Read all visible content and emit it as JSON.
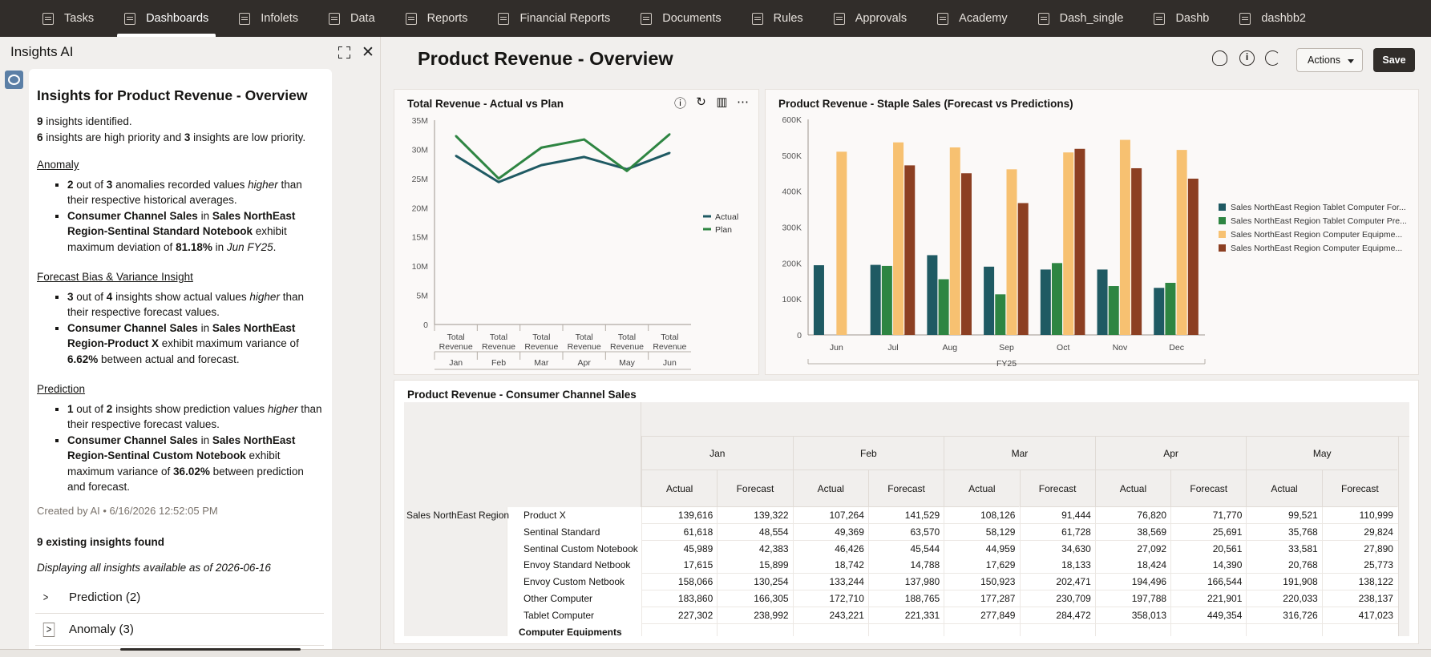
{
  "nav": {
    "items": [
      {
        "label": "Tasks",
        "icon": "clipboard-icon"
      },
      {
        "label": "Dashboards",
        "icon": "dashboard-icon",
        "active": true
      },
      {
        "label": "Infolets",
        "icon": "infolet-icon"
      },
      {
        "label": "Data",
        "icon": "data-grid-icon"
      },
      {
        "label": "Reports",
        "icon": "report-icon"
      },
      {
        "label": "Financial Reports",
        "icon": "financial-report-icon"
      },
      {
        "label": "Documents",
        "icon": "document-icon"
      },
      {
        "label": "Rules",
        "icon": "rules-icon"
      },
      {
        "label": "Approvals",
        "icon": "approvals-icon"
      },
      {
        "label": "Academy",
        "icon": "academy-icon"
      },
      {
        "label": "Dash_single",
        "icon": "dashboard-icon"
      },
      {
        "label": "Dashb",
        "icon": "dashboard-icon"
      },
      {
        "label": "dashbb2",
        "icon": "dashboard-icon"
      }
    ]
  },
  "insights": {
    "panel_title": "Insights AI",
    "heading": "Insights for Product Revenue - Overview",
    "count_line": {
      "n": "9",
      "text": " insights identified."
    },
    "priority_line": {
      "high": "6",
      "mid": " insights are high priority and ",
      "low": "3",
      "end": " insights are low priority."
    },
    "anomaly": {
      "title": "Anomaly",
      "b1": {
        "a": "2",
        "b": " out of ",
        "c": "3",
        "d": " anomalies recorded values ",
        "e": "higher",
        "f": " than their respective historical averages."
      },
      "b2": {
        "a": "Consumer Channel Sales",
        "b": " in ",
        "c": "Sales NorthEast Region-Sentinal Standard Notebook",
        "d": " exhibit maximum deviation of ",
        "e": "81.18%",
        "f": " in ",
        "g": "Jun FY25",
        "h": "."
      }
    },
    "forecast": {
      "title": "Forecast Bias & Variance Insight",
      "b1": {
        "a": "3",
        "b": " out of ",
        "c": "4",
        "d": " insights show actual values ",
        "e": "higher",
        "f": " than their respective forecast values."
      },
      "b2": {
        "a": "Consumer Channel Sales",
        "b": " in ",
        "c": "Sales NorthEast Region-Product X",
        "d": " exhibit maximum variance of ",
        "e": "6.62%",
        "f": " between actual and forecast."
      }
    },
    "prediction": {
      "title": "Prediction",
      "b1": {
        "a": "1",
        "b": " out of ",
        "c": "2",
        "d": " insights show prediction values ",
        "e": "higher",
        "f": " than their respective forecast values."
      },
      "b2": {
        "a": "Consumer Channel Sales",
        "b": " in ",
        "c": "Sales NorthEast Region-Sentinal Custom Notebook",
        "d": " exhibit maximum variance of ",
        "e": "36.02%",
        "f": " between prediction and forecast."
      }
    },
    "created": "Created by AI • 6/16/2026 12:52:05 PM",
    "existing": "9 existing insights found",
    "displaying": "Displaying all insights available as of 2026-06-16",
    "accordions": [
      {
        "label": "Prediction (2)"
      },
      {
        "label": "Anomaly (3)"
      }
    ]
  },
  "header": {
    "title": "Product Revenue - Overview",
    "actions_label": "Actions",
    "save_label": "Save"
  },
  "panel1_title": "Total Revenue - Actual vs Plan",
  "panel2_title": "Product Revenue - Staple Sales (Forecast vs Predictions)",
  "panel3_title": "Product Revenue - Consumer Channel Sales",
  "chart_data": [
    {
      "type": "line",
      "title": "Total Revenue - Actual vs Plan",
      "categories": [
        "Jan",
        "Feb",
        "Mar",
        "Apr",
        "May",
        "Jun"
      ],
      "category_group_label": "Total Revenue",
      "yticks": [
        "0",
        "5M",
        "10M",
        "15M",
        "20M",
        "25M",
        "30M",
        "35M"
      ],
      "ylim": [
        0,
        35000000
      ],
      "series": [
        {
          "name": "Actual",
          "color": "#1f5a63",
          "values": [
            28900000,
            24400000,
            27300000,
            28700000,
            26600000,
            29400000
          ]
        },
        {
          "name": "Plan",
          "color": "#2e8542",
          "values": [
            32300000,
            25000000,
            30300000,
            31700000,
            26300000,
            32600000
          ]
        }
      ],
      "legend": "right"
    },
    {
      "type": "bar",
      "title": "Product Revenue - Staple Sales (Forecast vs Predictions)",
      "categories": [
        "Jun",
        "Jul",
        "Aug",
        "Sep",
        "Oct",
        "Nov",
        "Dec"
      ],
      "x_group_label": "FY25",
      "yticks": [
        "0",
        "100K",
        "200K",
        "300K",
        "400K",
        "500K",
        "600K"
      ],
      "ylim": [
        0,
        600000
      ],
      "series": [
        {
          "name": "Sales NorthEast Region Tablet Computer For...",
          "color": "#1f5a63",
          "values": [
            194000,
            195000,
            222000,
            190000,
            182000,
            182000,
            131000
          ]
        },
        {
          "name": "Sales NorthEast Region Tablet Computer Pre...",
          "color": "#2e8542",
          "values": [
            null,
            192000,
            155000,
            113000,
            200000,
            136000,
            145000
          ]
        },
        {
          "name": "Sales NorthEast Region Computer Equipme...",
          "color": "#f7c171",
          "values": [
            510000,
            536000,
            522000,
            461000,
            508000,
            543000,
            515000
          ]
        },
        {
          "name": "Sales NorthEast Region Computer Equipme...",
          "color": "#8c3f22",
          "values": [
            null,
            472000,
            450000,
            367000,
            518000,
            464000,
            435000
          ]
        }
      ],
      "legend": "right"
    }
  ],
  "table": {
    "months": [
      "Jan",
      "Feb",
      "Mar",
      "Apr",
      "May"
    ],
    "col_labels": [
      "Actual",
      "Forecast"
    ],
    "region": "Sales NorthEast Region",
    "rows": [
      {
        "label": "Product X",
        "values": [
          "139,616",
          "139,322",
          "107,264",
          "141,529",
          "108,126",
          "91,444",
          "76,820",
          "71,770",
          "99,521",
          "110,999"
        ]
      },
      {
        "label": "Sentinal Standard Notebook",
        "values": [
          "61,618",
          "48,554",
          "49,369",
          "63,570",
          "58,129",
          "61,728",
          "38,569",
          "25,691",
          "35,768",
          "29,824"
        ]
      },
      {
        "label": "Sentinal Custom Notebook",
        "values": [
          "45,989",
          "42,383",
          "46,426",
          "45,544",
          "44,959",
          "34,630",
          "27,092",
          "20,561",
          "33,581",
          "27,890"
        ]
      },
      {
        "label": "Envoy Standard Netbook",
        "values": [
          "17,615",
          "15,899",
          "18,742",
          "14,788",
          "17,629",
          "18,133",
          "18,424",
          "14,390",
          "20,768",
          "25,773"
        ]
      },
      {
        "label": "Envoy Custom Netbook",
        "values": [
          "158,066",
          "130,254",
          "133,244",
          "137,980",
          "150,923",
          "202,471",
          "194,496",
          "166,544",
          "191,908",
          "138,122"
        ]
      },
      {
        "label": "Other Computer",
        "values": [
          "183,860",
          "166,305",
          "172,710",
          "188,765",
          "177,287",
          "230,709",
          "197,788",
          "221,901",
          "220,033",
          "238,137"
        ]
      },
      {
        "label": "Tablet Computer",
        "values": [
          "227,302",
          "238,992",
          "243,221",
          "221,331",
          "277,849",
          "284,472",
          "358,013",
          "449,354",
          "316,726",
          "417,023"
        ]
      },
      {
        "label": "Computer Equipments",
        "values": [
          "",
          "",
          "",
          "",
          "",
          "",
          "",
          "",
          "",
          ""
        ]
      }
    ]
  }
}
